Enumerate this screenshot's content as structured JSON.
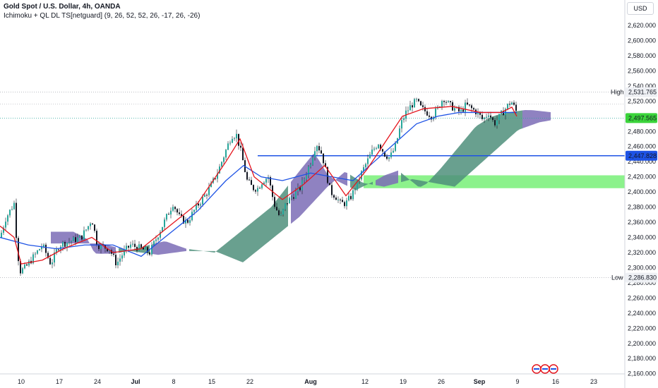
{
  "header": {
    "symbol": "Gold Spot / U.S. Dollar, 4h, OANDA",
    "indicator": "Ichimoku + QL DL TS[netguard] (9, 26, 52, 52, 26, -17, 26, -26)",
    "currency": "USD"
  },
  "colors": {
    "bull": "#26a69a",
    "bear": "#ef5350",
    "candle": "#131722",
    "tenkan": "#e5141c",
    "kijun": "#1e53e5",
    "cloud_bull": "#4f8f7b",
    "cloud_bear": "#7b6cb6",
    "zone": "#66ee66",
    "level": "#1e53e5"
  },
  "chart_data": {
    "type": "candlestick",
    "timeframe": "4h",
    "x_ticks": [
      "10",
      "17",
      "24",
      "Jul",
      "8",
      "15",
      "22",
      "Aug",
      "12",
      "19",
      "26",
      "Sep",
      "9",
      "16",
      "23"
    ],
    "y_range": [
      2150,
      2640
    ],
    "y_ticks": [
      2160,
      2180,
      2200,
      2220,
      2240,
      2260,
      2280,
      2300,
      2320,
      2340,
      2360,
      2380,
      2400,
      2420,
      2440,
      2460,
      2480,
      2500,
      2520,
      2540,
      2560,
      2580,
      2600,
      2620
    ],
    "y_tick_labels": [
      "2,160.000",
      "2,180.000",
      "2,200.000",
      "2,220.000",
      "2,240.000",
      "2,260.000",
      "2,280.000",
      "2,300.000",
      "2,320.000",
      "2,340.000",
      "2,360.000",
      "2,380.000",
      "2,400.000",
      "2,420.000",
      "2,440.000",
      "2,460.000",
      "2,480.000",
      "2,500.000",
      "2,520.000",
      "2,540.000",
      "2,560.000",
      "2,580.000",
      "2,600.000",
      "2,620.000"
    ],
    "price_path": [
      [
        0,
        2340
      ],
      [
        8,
        2365
      ],
      [
        20,
        2385
      ],
      [
        24,
        2330
      ],
      [
        28,
        2295
      ],
      [
        36,
        2300
      ],
      [
        48,
        2315
      ],
      [
        60,
        2330
      ],
      [
        72,
        2305
      ],
      [
        84,
        2330
      ],
      [
        100,
        2335
      ],
      [
        115,
        2340
      ],
      [
        125,
        2355
      ],
      [
        130,
        2365
      ],
      [
        138,
        2330
      ],
      [
        145,
        2328
      ],
      [
        155,
        2325
      ],
      [
        165,
        2305
      ],
      [
        175,
        2320
      ],
      [
        185,
        2330
      ],
      [
        200,
        2325
      ],
      [
        212,
        2320
      ],
      [
        222,
        2340
      ],
      [
        235,
        2365
      ],
      [
        245,
        2385
      ],
      [
        255,
        2365
      ],
      [
        265,
        2360
      ],
      [
        278,
        2380
      ],
      [
        290,
        2395
      ],
      [
        300,
        2410
      ],
      [
        310,
        2430
      ],
      [
        320,
        2455
      ],
      [
        328,
        2475
      ],
      [
        335,
        2475
      ],
      [
        342,
        2450
      ],
      [
        350,
        2415
      ],
      [
        358,
        2405
      ],
      [
        365,
        2405
      ],
      [
        372,
        2415
      ],
      [
        380,
        2420
      ],
      [
        388,
        2385
      ],
      [
        397,
        2365
      ],
      [
        405,
        2385
      ],
      [
        415,
        2395
      ],
      [
        425,
        2405
      ],
      [
        432,
        2420
      ],
      [
        440,
        2440
      ],
      [
        448,
        2465
      ],
      [
        456,
        2450
      ],
      [
        462,
        2425
      ],
      [
        468,
        2400
      ],
      [
        475,
        2395
      ],
      [
        482,
        2385
      ],
      [
        490,
        2385
      ],
      [
        498,
        2395
      ],
      [
        505,
        2410
      ],
      [
        512,
        2425
      ],
      [
        520,
        2440
      ],
      [
        528,
        2455
      ],
      [
        536,
        2465
      ],
      [
        545,
        2450
      ],
      [
        552,
        2445
      ],
      [
        560,
        2460
      ],
      [
        568,
        2490
      ],
      [
        575,
        2505
      ],
      [
        583,
        2515
      ],
      [
        590,
        2520
      ],
      [
        597,
        2510
      ],
      [
        605,
        2505
      ],
      [
        612,
        2500
      ],
      [
        620,
        2510
      ],
      [
        628,
        2525
      ],
      [
        636,
        2515
      ],
      [
        644,
        2510
      ],
      [
        652,
        2505
      ],
      [
        660,
        2515
      ],
      [
        668,
        2510
      ],
      [
        676,
        2505
      ],
      [
        684,
        2495
      ],
      [
        692,
        2505
      ],
      [
        700,
        2490
      ],
      [
        708,
        2500
      ],
      [
        716,
        2510
      ],
      [
        724,
        2520
      ],
      [
        732,
        2505
      ]
    ],
    "tenkan_sen": [
      [
        0,
        2355
      ],
      [
        20,
        2340
      ],
      [
        30,
        2305
      ],
      [
        60,
        2310
      ],
      [
        90,
        2325
      ],
      [
        130,
        2340
      ],
      [
        160,
        2320
      ],
      [
        200,
        2325
      ],
      [
        240,
        2355
      ],
      [
        280,
        2385
      ],
      [
        320,
        2440
      ],
      [
        340,
        2470
      ],
      [
        360,
        2420
      ],
      [
        380,
        2405
      ],
      [
        400,
        2390
      ],
      [
        430,
        2410
      ],
      [
        460,
        2435
      ],
      [
        490,
        2395
      ],
      [
        520,
        2430
      ],
      [
        545,
        2465
      ],
      [
        570,
        2500
      ],
      [
        600,
        2510
      ],
      [
        640,
        2513
      ],
      [
        680,
        2505
      ],
      [
        710,
        2505
      ],
      [
        725,
        2512
      ],
      [
        732,
        2500
      ]
    ],
    "kijun_sen": [
      [
        0,
        2340
      ],
      [
        40,
        2330
      ],
      [
        80,
        2325
      ],
      [
        120,
        2330
      ],
      [
        160,
        2330
      ],
      [
        200,
        2315
      ],
      [
        240,
        2345
      ],
      [
        280,
        2375
      ],
      [
        320,
        2415
      ],
      [
        345,
        2435
      ],
      [
        370,
        2420
      ],
      [
        400,
        2415
      ],
      [
        440,
        2425
      ],
      [
        470,
        2420
      ],
      [
        500,
        2415
      ],
      [
        530,
        2440
      ],
      [
        560,
        2465
      ],
      [
        590,
        2490
      ],
      [
        620,
        2500
      ],
      [
        650,
        2505
      ],
      [
        680,
        2505
      ],
      [
        710,
        2505
      ],
      [
        732,
        2505
      ]
    ],
    "cloud_bearish_ranges": [
      [
        70,
        165
      ],
      [
        215,
        265
      ],
      [
        410,
        495
      ],
      [
        530,
        565
      ],
      [
        740,
        780
      ]
    ],
    "cloud_bullish_ranges": [
      [
        165,
        215
      ],
      [
        265,
        410
      ],
      [
        495,
        530
      ],
      [
        565,
        740
      ]
    ],
    "level": {
      "label": "2,447.828",
      "value": 2447.828
    },
    "high": {
      "label": "High",
      "value_label": "2,531.765",
      "value": 2531.765
    },
    "low": {
      "label": "Low",
      "value_label": "2,286.830",
      "value": 2286.83
    },
    "last": {
      "value_label": "2,497.565",
      "value": 2497.565
    },
    "demand_zone": {
      "from": 2405,
      "to": 2422
    }
  }
}
